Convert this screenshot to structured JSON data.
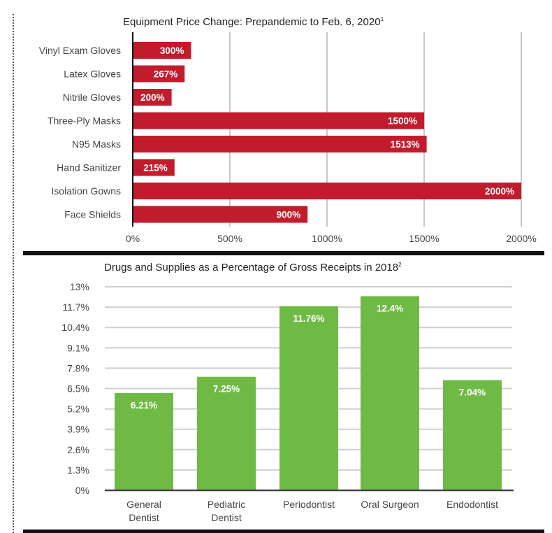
{
  "chart_data": [
    {
      "type": "bar",
      "orientation": "horizontal",
      "title": "Equipment Price Change: Prepandemic to Feb. 6, 2020",
      "title_footnote": "1",
      "categories": [
        "Vinyl Exam Gloves",
        "Latex Gloves",
        "Nitrile Gloves",
        "Three-Ply Masks",
        "N95 Masks",
        "Hand Sanitizer",
        "Isolation Gowns",
        "Face Shields"
      ],
      "values": [
        300,
        267,
        200,
        1500,
        1513,
        215,
        2000,
        900
      ],
      "data_labels": [
        "300%",
        "267%",
        "200%",
        "1500%",
        "1513%",
        "215%",
        "2000%",
        "900%"
      ],
      "xlabel": "",
      "ylabel": "",
      "xlim": [
        0,
        2000
      ],
      "xticks": [
        0,
        500,
        1000,
        1500,
        2000
      ],
      "xtick_labels": [
        "0%",
        "500%",
        "1000%",
        "1500%",
        "2000%"
      ],
      "grid": "vertical",
      "bar_color": "#c21b2c",
      "legend": "none"
    },
    {
      "type": "bar",
      "orientation": "vertical",
      "title": "Drugs and Supplies as a Percentage of Gross Receipts in 2018",
      "title_footnote": "2",
      "categories": [
        [
          "General",
          "Dentist"
        ],
        [
          "Pediatric",
          "Dentist"
        ],
        [
          "Periodontist"
        ],
        [
          "Oral Surgeon"
        ],
        [
          "Endodontist"
        ]
      ],
      "values": [
        6.21,
        7.25,
        11.76,
        12.4,
        7.04
      ],
      "data_labels": [
        "6.21%",
        "7.25%",
        "11.76%",
        "12.4%",
        "7.04%"
      ],
      "xlabel": "",
      "ylabel": "",
      "ylim": [
        0,
        13
      ],
      "yticks": [
        0,
        1.3,
        2.6,
        3.9,
        5.2,
        6.5,
        7.8,
        9.1,
        10.4,
        11.7,
        13
      ],
      "ytick_labels": [
        "0%",
        "1.3%",
        "2.6%",
        "3.9%",
        "5.2%",
        "6.5%",
        "7.8%",
        "9.1%",
        "10.4%",
        "11.7%",
        "13%"
      ],
      "grid": "horizontal",
      "bar_color": "#6fba44",
      "legend": "none"
    }
  ]
}
